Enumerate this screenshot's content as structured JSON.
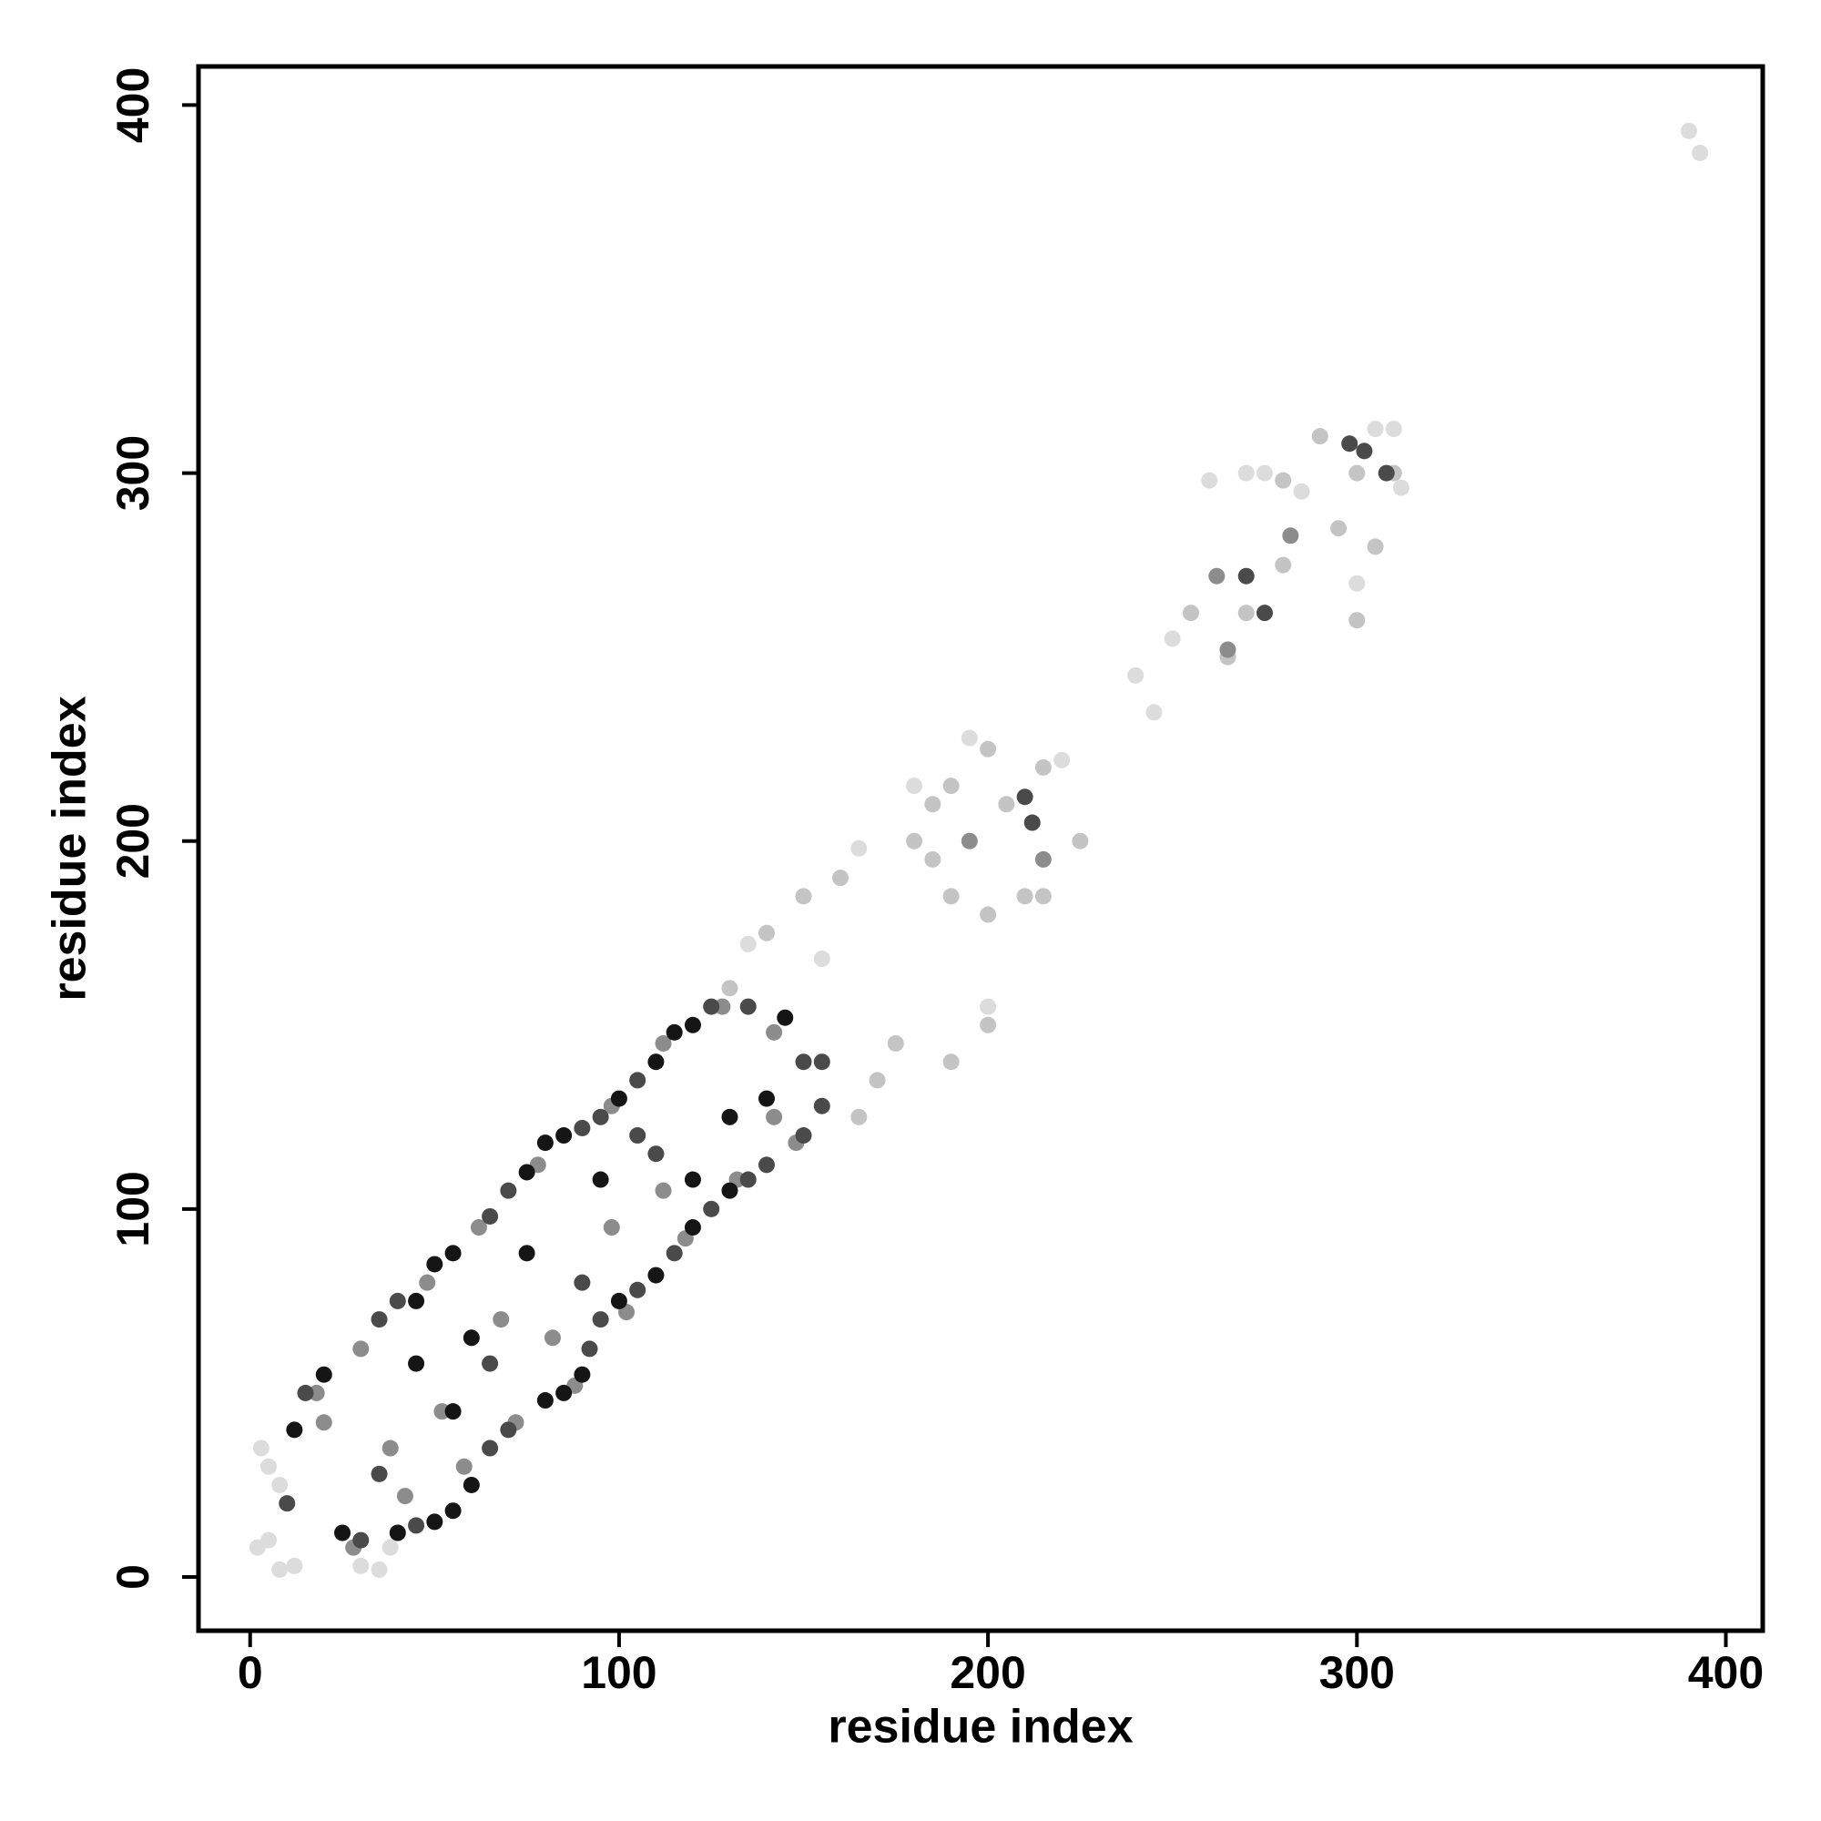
{
  "chart_data": {
    "type": "scatter",
    "xlabel": "residue index",
    "ylabel": "residue index",
    "xlim": [
      -14,
      410
    ],
    "ylim": [
      -14.6,
      410.5
    ],
    "xticks": [
      0,
      100,
      200,
      300,
      400
    ],
    "yticks": [
      0,
      100,
      200,
      300,
      400
    ],
    "series": [
      {
        "color": "#dcdcdc",
        "x": [
          3,
          5,
          8,
          2,
          5,
          8,
          12,
          30,
          35,
          38,
          240,
          245,
          250,
          260,
          270,
          275,
          285,
          305,
          310,
          390,
          393,
          195,
          220,
          165,
          135,
          155,
          180,
          200,
          312,
          300
        ],
        "values": [
          35,
          30,
          25,
          8,
          10,
          2,
          3,
          3,
          2,
          8,
          245,
          235,
          255,
          298,
          300,
          300,
          295,
          312,
          312,
          393,
          387,
          228,
          222,
          198,
          172,
          168,
          215,
          155,
          296,
          270
        ]
      },
      {
        "color": "#c4c4c4",
        "x": [
          180,
          185,
          190,
          200,
          205,
          215,
          225,
          215,
          200,
          190,
          185,
          210,
          160,
          150,
          140,
          175,
          190,
          200,
          170,
          255,
          265,
          280,
          290,
          300,
          305,
          295,
          280,
          270,
          300,
          310,
          165,
          130
        ],
        "values": [
          200,
          210,
          215,
          225,
          210,
          220,
          200,
          185,
          180,
          185,
          195,
          185,
          190,
          185,
          175,
          145,
          140,
          150,
          135,
          262,
          250,
          298,
          310,
          300,
          280,
          285,
          275,
          262,
          260,
          300,
          125,
          160
        ]
      },
      {
        "color": "#8c8c8c",
        "x": [
          20,
          28,
          42,
          58,
          72,
          88,
          102,
          118,
          132,
          148,
          18,
          30,
          48,
          62,
          78,
          98,
          112,
          128,
          142,
          38,
          52,
          68,
          82,
          98,
          112,
          142,
          282,
          262,
          265,
          195,
          215
        ],
        "values": [
          42,
          8,
          22,
          30,
          42,
          52,
          72,
          92,
          108,
          118,
          50,
          62,
          80,
          95,
          112,
          128,
          145,
          155,
          148,
          35,
          45,
          70,
          65,
          95,
          105,
          125,
          283,
          272,
          252,
          200,
          195
        ]
      },
      {
        "color": "#4a4a4a",
        "x": [
          30,
          45,
          65,
          70,
          92,
          95,
          105,
          115,
          125,
          135,
          140,
          150,
          155,
          10,
          15,
          35,
          40,
          65,
          70,
          90,
          95,
          105,
          125,
          135,
          150,
          155,
          35,
          65,
          90,
          105,
          110,
          298,
          302,
          308,
          270,
          275,
          210,
          212
        ],
        "values": [
          10,
          14,
          35,
          40,
          62,
          70,
          78,
          88,
          100,
          108,
          112,
          120,
          128,
          20,
          50,
          70,
          75,
          98,
          105,
          122,
          125,
          135,
          155,
          155,
          140,
          140,
          28,
          58,
          80,
          120,
          115,
          308,
          306,
          300,
          272,
          262,
          212,
          205
        ]
      },
      {
        "color": "#151515",
        "x": [
          25,
          40,
          50,
          55,
          60,
          80,
          85,
          90,
          100,
          110,
          120,
          130,
          12,
          20,
          45,
          50,
          55,
          75,
          80,
          85,
          100,
          110,
          115,
          120,
          145,
          60,
          75,
          95,
          120,
          130,
          140,
          45,
          55
        ],
        "values": [
          12,
          12,
          15,
          18,
          25,
          48,
          50,
          55,
          75,
          82,
          95,
          105,
          40,
          55,
          75,
          85,
          88,
          110,
          118,
          120,
          130,
          140,
          148,
          150,
          152,
          65,
          88,
          108,
          108,
          125,
          130,
          58,
          45
        ]
      }
    ]
  }
}
